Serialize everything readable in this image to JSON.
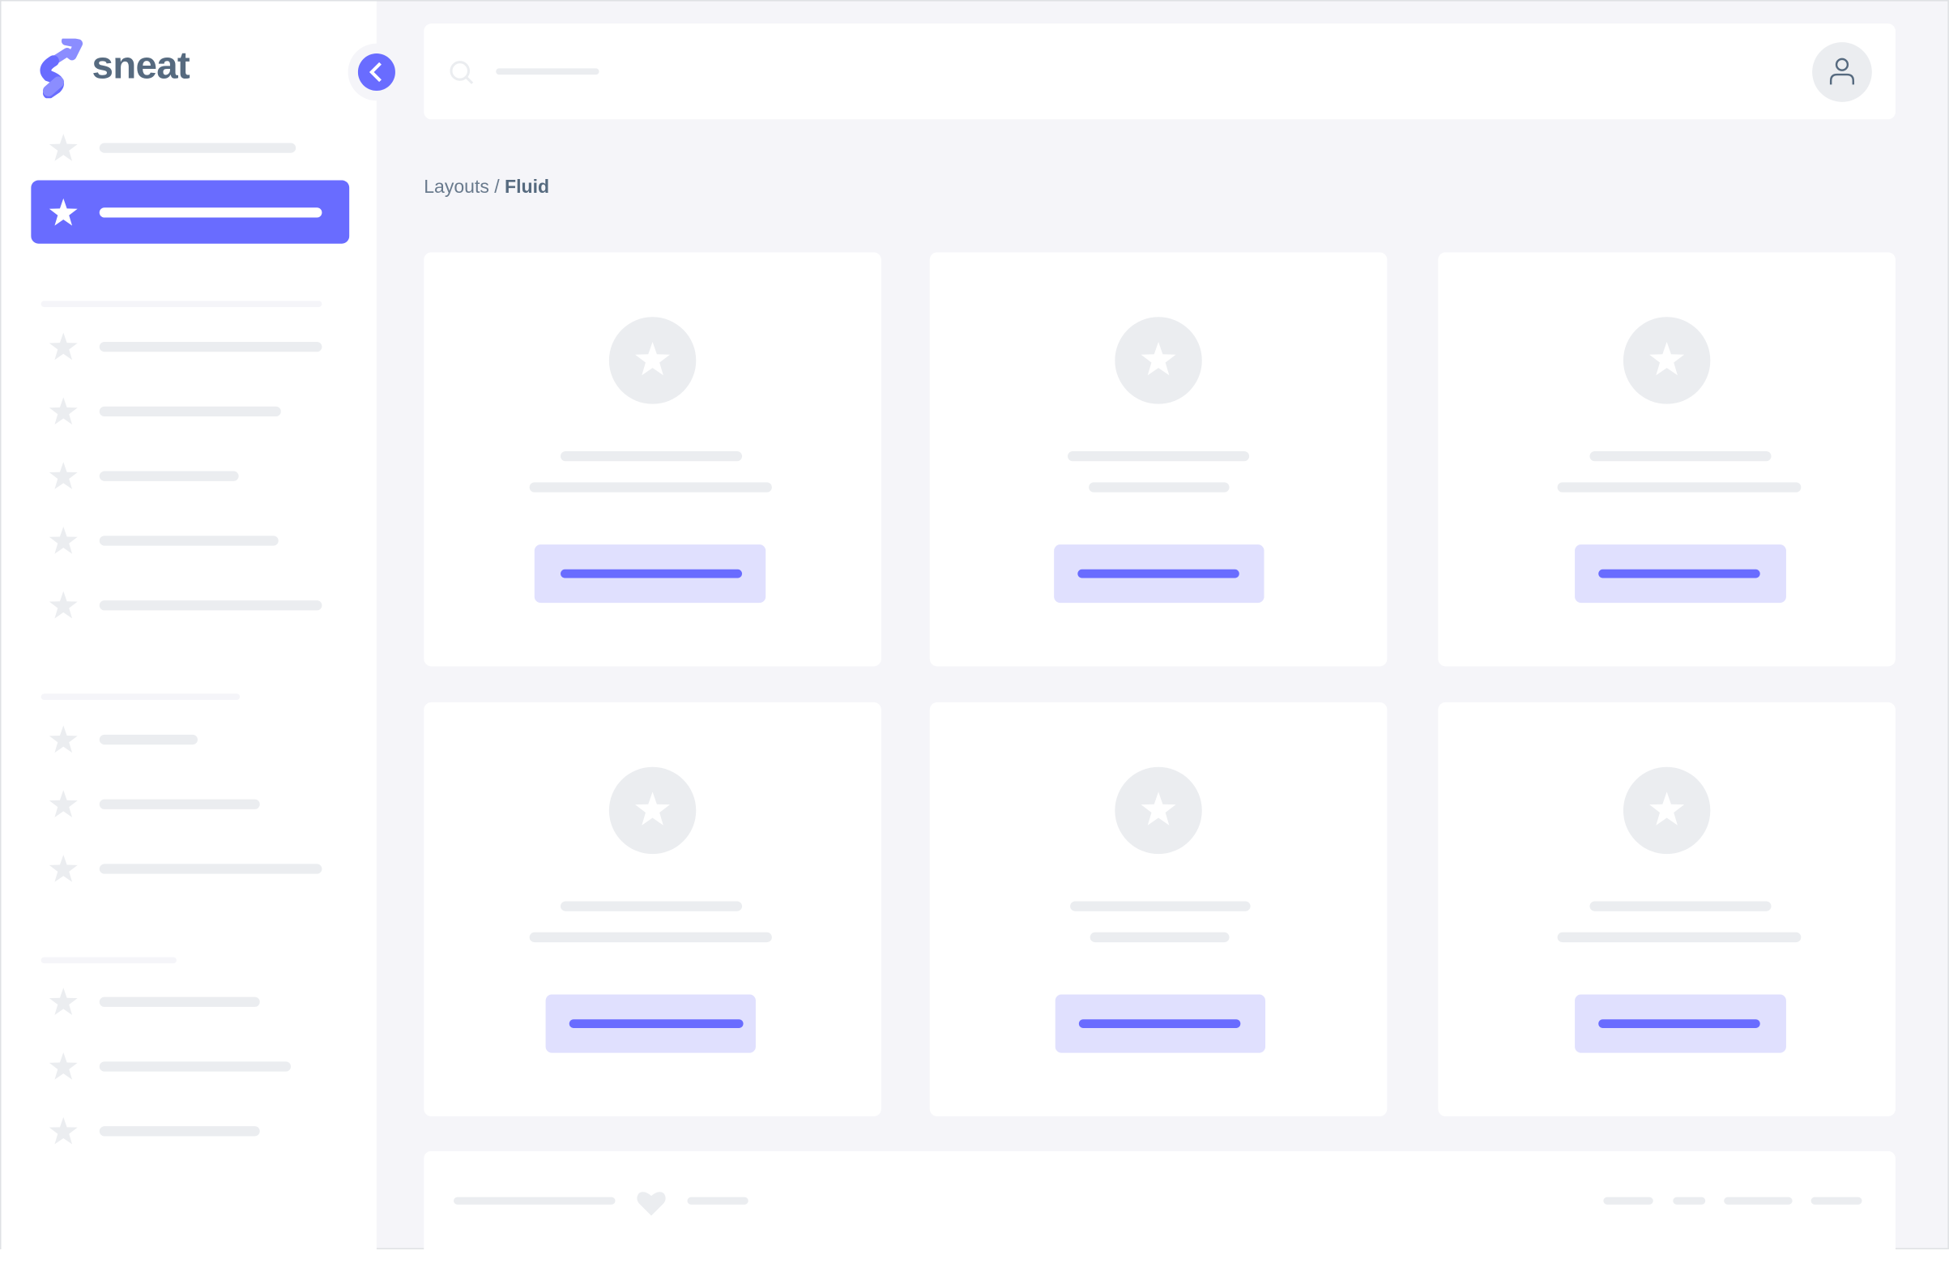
{
  "brand": {
    "name": "sneat",
    "color": "#696cff",
    "text_color": "#566a7f"
  },
  "breadcrumb": {
    "parent": "Layouts",
    "separator": " / ",
    "current": "Fluid"
  },
  "sidebar": {
    "active_index": 1,
    "icons": "star-icon"
  },
  "navbar": {
    "search_icon": "search-icon",
    "user_icon": "user-icon"
  },
  "cards": {
    "count": 6,
    "icon": "star-icon",
    "button_color": "#e0e0fe",
    "accent": "#696cff"
  },
  "footer": {
    "icon": "heart-icon"
  }
}
